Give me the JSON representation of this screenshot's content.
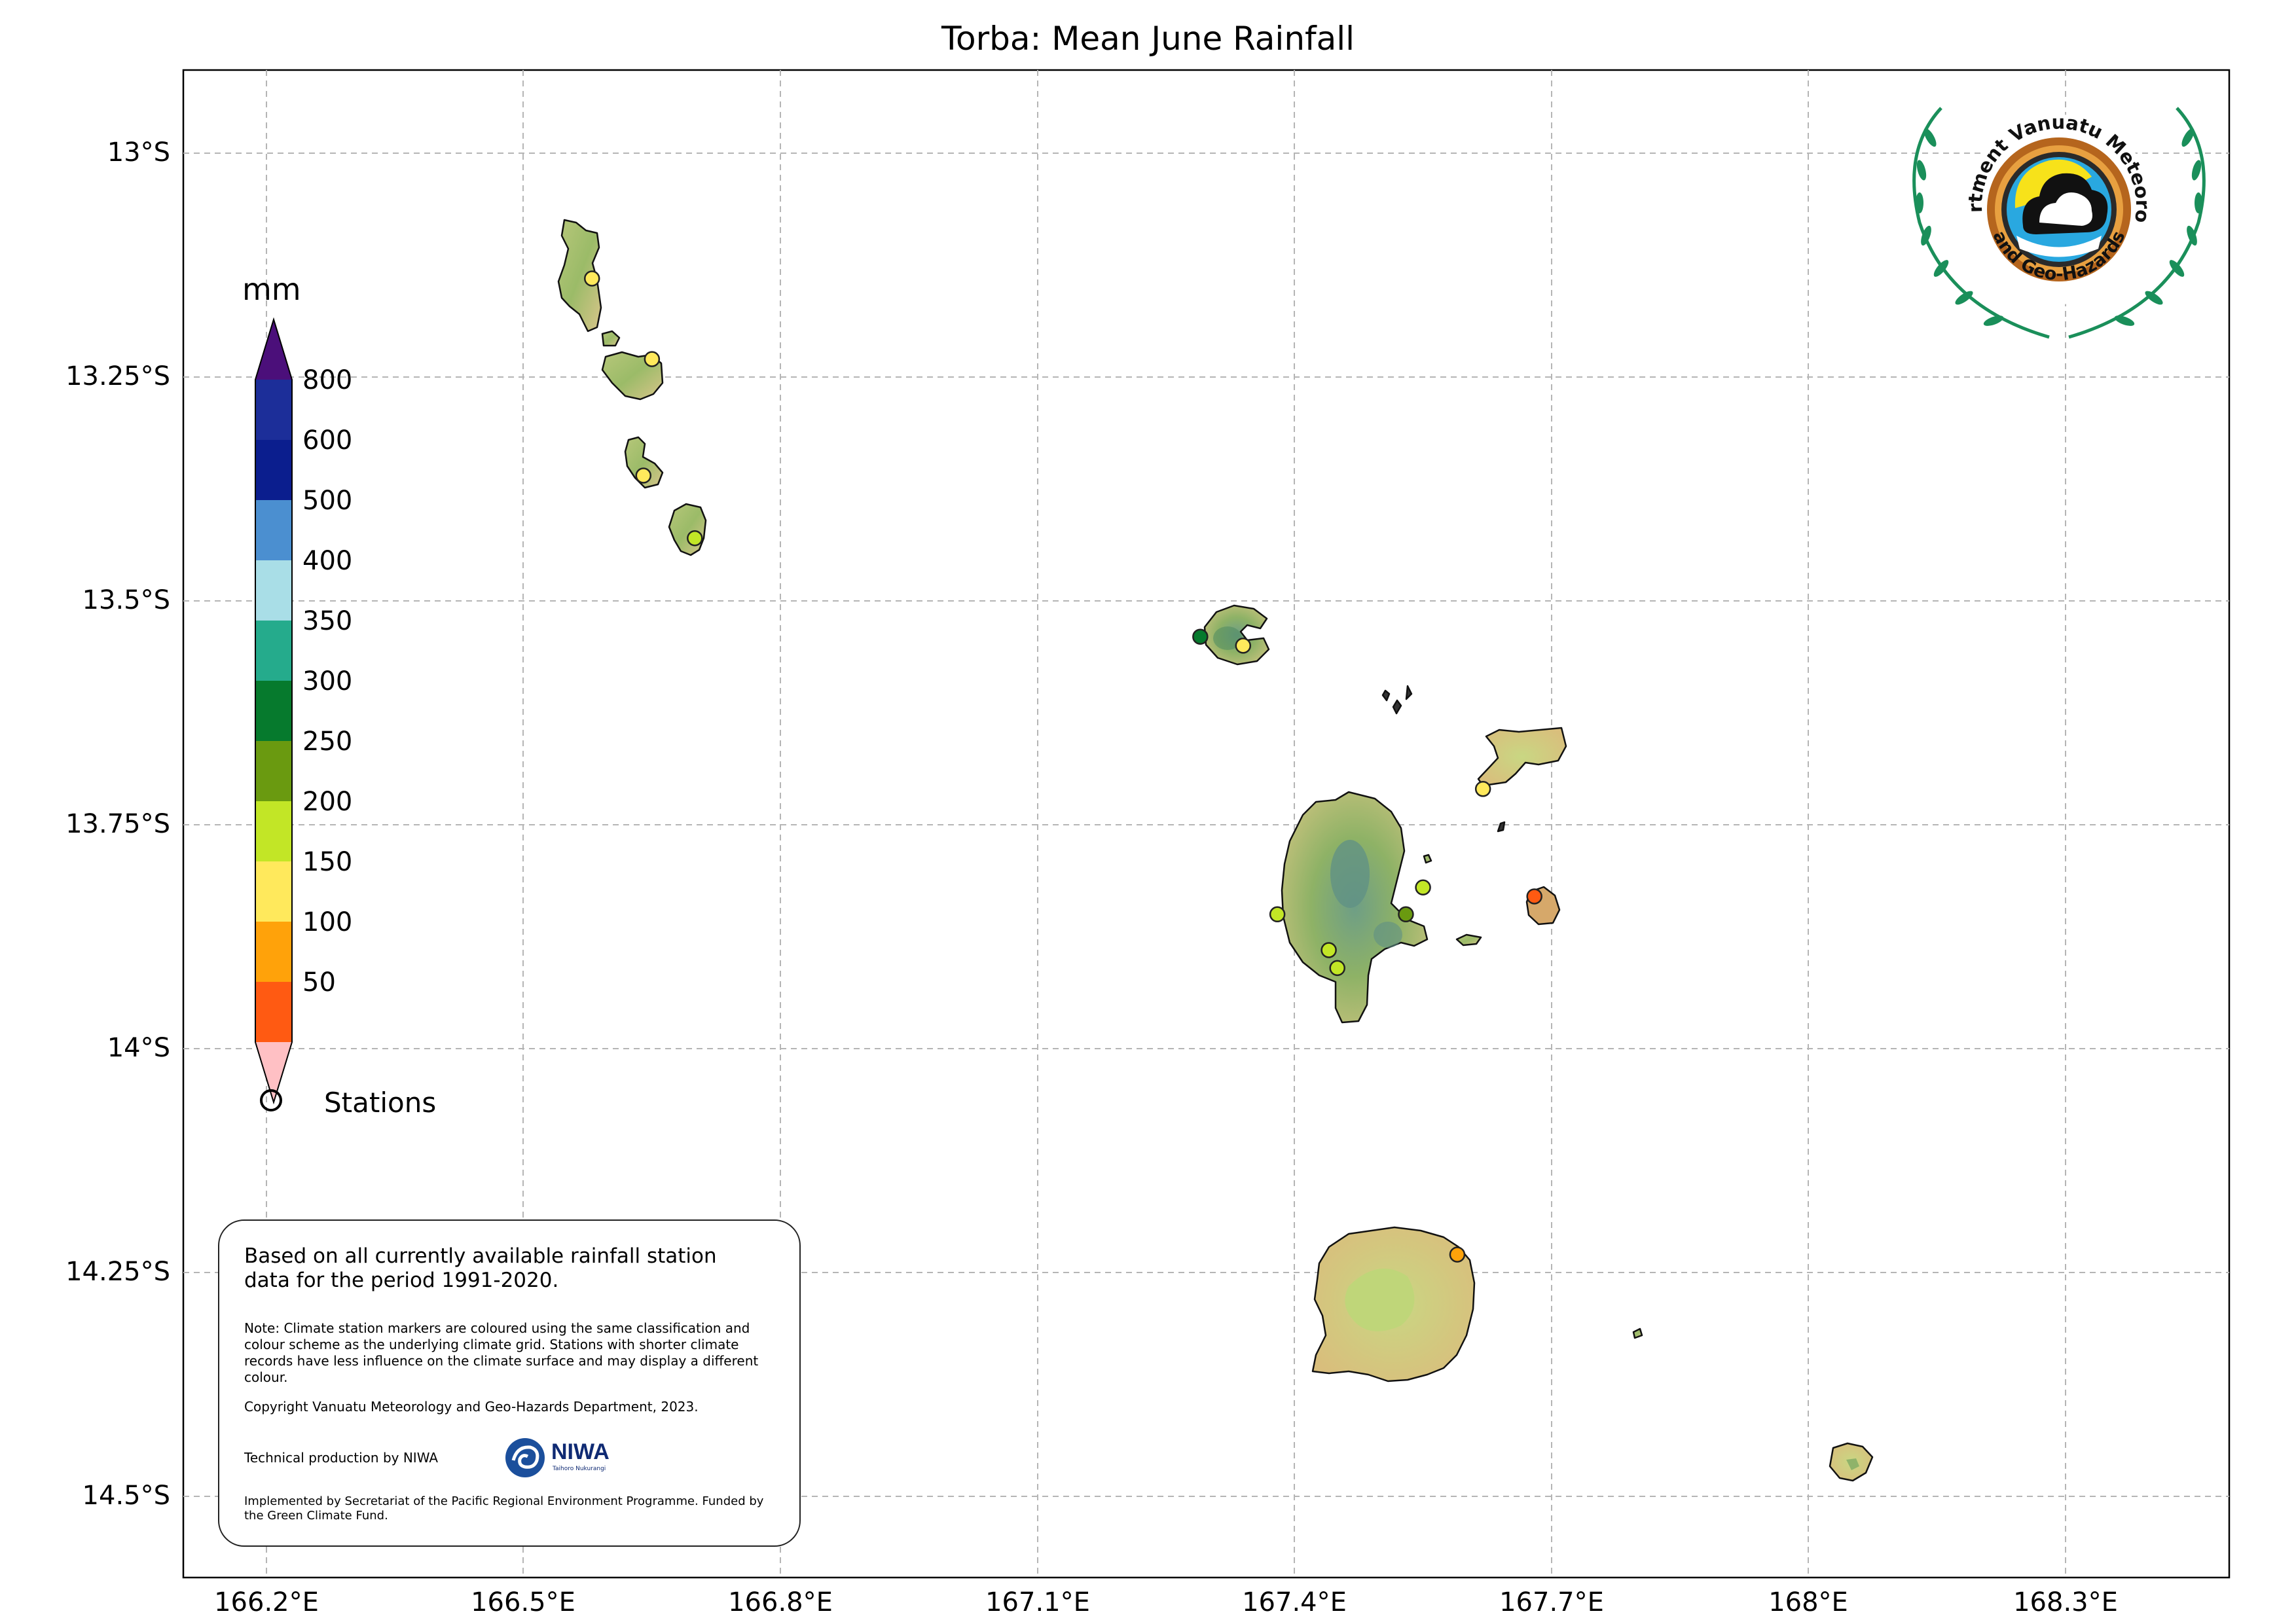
{
  "title": "Torba: Mean June Rainfall",
  "latitude_labels": [
    "13°S",
    "13.25°S",
    "13.5°S",
    "13.75°S",
    "14°S",
    "14.25°S",
    "14.5°S"
  ],
  "longitude_labels": [
    "166.2°E",
    "166.5°E",
    "166.8°E",
    "167.1°E",
    "167.4°E",
    "167.7°E",
    "168°E",
    "168.3°E"
  ],
  "colorbar": {
    "unit": "mm",
    "ticks": [
      "800",
      "600",
      "500",
      "400",
      "350",
      "300",
      "250",
      "200",
      "150",
      "100",
      "50"
    ],
    "colors": [
      "#4b0f7a",
      "#1c2e99",
      "#0b1e8e",
      "#4b8fd0",
      "#a9dee7",
      "#25ab8c",
      "#067a2d",
      "#6a9a10",
      "#c2e626",
      "#ffe95c",
      "#ffa20a",
      "#ff5a12",
      "#ffc0c4"
    ]
  },
  "stations_legend_label": "Stations",
  "note": {
    "main": "Based on all currently available rainfall station data for the period 1991-2020.",
    "climate_note": "Note: Climate station markers are coloured using the same classification and colour scheme as the underlying climate grid. Stations with shorter climate records have less influence on the climate surface and may display a different colour.",
    "copyright": "Copyright Vanuatu Meteorology and Geo-Hazards Department, 2023.",
    "technical": "Technical production by NIWA",
    "implemented": "Implemented by Secretariat of the Pacific Regional Environment Programme. Funded by the Green Climate Fund."
  },
  "niwa_logo": {
    "name": "NIWA",
    "tagline": "Taihoro Nukurangi"
  },
  "logo": {
    "text": "Department Vanuatu Meteorology and Geo-Hazards"
  },
  "stations": [
    {
      "lon": 166.58,
      "lat": -13.14,
      "rainfall_class": "150-200",
      "color": "#ffe95c"
    },
    {
      "lon": 166.65,
      "lat": -13.23,
      "rainfall_class": "150-200",
      "color": "#ffe95c"
    },
    {
      "lon": 166.64,
      "lat": -13.36,
      "rainfall_class": "150-200",
      "color": "#ffe95c"
    },
    {
      "lon": 166.7,
      "lat": -13.43,
      "rainfall_class": "200-250",
      "color": "#c2e626"
    },
    {
      "lon": 167.29,
      "lat": -13.54,
      "rainfall_class": "300-350",
      "color": "#067a2d"
    },
    {
      "lon": 167.34,
      "lat": -13.55,
      "rainfall_class": "150-200",
      "color": "#ffe95c"
    },
    {
      "lon": 167.62,
      "lat": -13.71,
      "rainfall_class": "150-200",
      "color": "#ffe95c"
    },
    {
      "lon": 167.55,
      "lat": -13.82,
      "rainfall_class": "200-250",
      "color": "#c2e626"
    },
    {
      "lon": 167.53,
      "lat": -13.85,
      "rainfall_class": "250-300",
      "color": "#6a9a10"
    },
    {
      "lon": 167.38,
      "lat": -13.85,
      "rainfall_class": "200-250",
      "color": "#c2e626"
    },
    {
      "lon": 167.44,
      "lat": -13.89,
      "rainfall_class": "200-250",
      "color": "#c2e626"
    },
    {
      "lon": 167.45,
      "lat": -13.91,
      "rainfall_class": "200-250",
      "color": "#c2e626"
    },
    {
      "lon": 167.68,
      "lat": -13.83,
      "rainfall_class": "50-100",
      "color": "#ff5a12"
    },
    {
      "lon": 167.59,
      "lat": -14.23,
      "rainfall_class": "100-150",
      "color": "#ffa20a"
    }
  ]
}
